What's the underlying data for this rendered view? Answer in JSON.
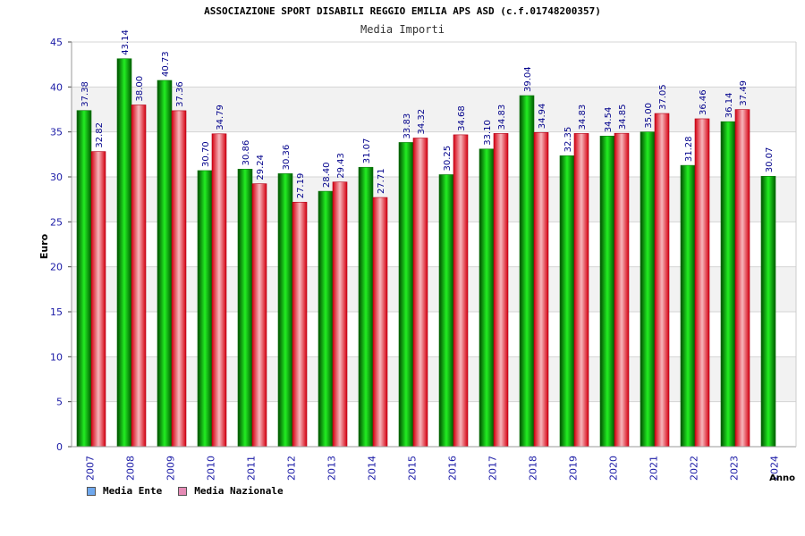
{
  "chart_data": {
    "type": "bar",
    "title": "ASSOCIAZIONE SPORT DISABILI REGGIO EMILIA APS ASD (c.f.01748200357)",
    "subtitle": "Media Importi",
    "ylabel": "Euro",
    "xlabel": "Anno",
    "ylim": [
      0,
      45
    ],
    "yticks": [
      "0",
      "5",
      "10",
      "15",
      "20",
      "25",
      "30",
      "35",
      "40",
      "45"
    ],
    "categories": [
      "2007",
      "2008",
      "2009",
      "2010",
      "2011",
      "2012",
      "2013",
      "2014",
      "2015",
      "2016",
      "2017",
      "2018",
      "2019",
      "2020",
      "2021",
      "2022",
      "2023",
      "2024"
    ],
    "series": [
      {
        "name": "Media Ente",
        "values": [
          37.38,
          43.14,
          40.73,
          30.7,
          30.86,
          30.36,
          28.4,
          31.07,
          33.83,
          30.25,
          33.1,
          39.04,
          32.35,
          34.54,
          35.0,
          31.28,
          36.14,
          30.07
        ],
        "labels": [
          "37.38",
          "43.14",
          "40.73",
          "30.70",
          "30.86",
          "30.36",
          "28.40",
          "31.07",
          "33.83",
          "30.25",
          "33.10",
          "39.04",
          "32.35",
          "34.54",
          "35.00",
          "31.28",
          "36.14",
          "30.07"
        ],
        "color": "#00c000",
        "legend_color": "#6fa8ee"
      },
      {
        "name": "Media Nazionale",
        "values": [
          32.82,
          38.0,
          37.36,
          34.79,
          29.24,
          27.19,
          29.43,
          27.71,
          34.32,
          34.68,
          34.83,
          34.94,
          34.83,
          34.85,
          37.05,
          36.46,
          37.49,
          null
        ],
        "labels": [
          "32.82",
          "38.00",
          "37.36",
          "34.79",
          "29.24",
          "27.19",
          "29.43",
          "27.71",
          "34.32",
          "34.68",
          "34.83",
          "34.94",
          "34.83",
          "34.85",
          "37.05",
          "36.46",
          "37.49",
          ""
        ],
        "color": "#e81e2a",
        "legend_color": "#e58bb5"
      }
    ]
  },
  "colors": {
    "axis_text": "#1a1aa6",
    "band": "#f2f2f2",
    "grid": "#d4d4d4"
  }
}
